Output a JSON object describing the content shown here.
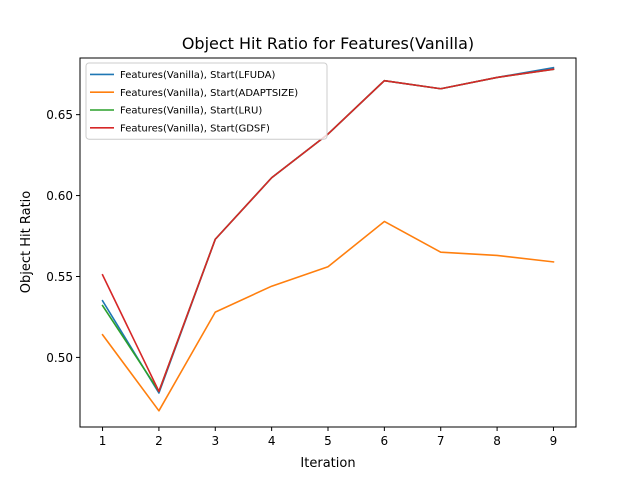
{
  "chart_data": {
    "type": "line",
    "title": "Object Hit Ratio for Features(Vanilla)",
    "xlabel": "Iteration",
    "ylabel": "Object Hit Ratio",
    "x": [
      1,
      2,
      3,
      4,
      5,
      6,
      7,
      8,
      9
    ],
    "xlim": [
      0.6,
      9.4
    ],
    "ylim": [
      0.457,
      0.685
    ],
    "xticks": [
      1,
      2,
      3,
      4,
      5,
      6,
      7,
      8,
      9
    ],
    "xtick_labels": [
      "1",
      "2",
      "3",
      "4",
      "5",
      "6",
      "7",
      "8",
      "9"
    ],
    "yticks": [
      0.5,
      0.55,
      0.6,
      0.65
    ],
    "ytick_labels": [
      "0.50",
      "0.55",
      "0.60",
      "0.65"
    ],
    "grid": false,
    "legend_position": "top-left",
    "series": [
      {
        "name": "Features(Vanilla), Start(LFUDA)",
        "color": "#1f77b4",
        "values": [
          0.535,
          0.478,
          0.573,
          0.611,
          0.638,
          0.671,
          0.666,
          0.673,
          0.679
        ]
      },
      {
        "name": "Features(Vanilla), Start(ADAPTSIZE)",
        "color": "#ff7f0e",
        "values": [
          0.514,
          0.467,
          0.528,
          0.544,
          0.556,
          0.584,
          0.565,
          0.563,
          0.559
        ]
      },
      {
        "name": "Features(Vanilla), Start(LRU)",
        "color": "#2ca02c",
        "values": [
          0.532,
          0.479,
          0.573,
          0.611,
          0.638,
          0.671,
          0.666,
          0.673,
          0.678
        ]
      },
      {
        "name": "Features(Vanilla), Start(GDSF)",
        "color": "#d62728",
        "values": [
          0.551,
          0.479,
          0.573,
          0.611,
          0.638,
          0.671,
          0.666,
          0.673,
          0.678
        ]
      }
    ]
  }
}
